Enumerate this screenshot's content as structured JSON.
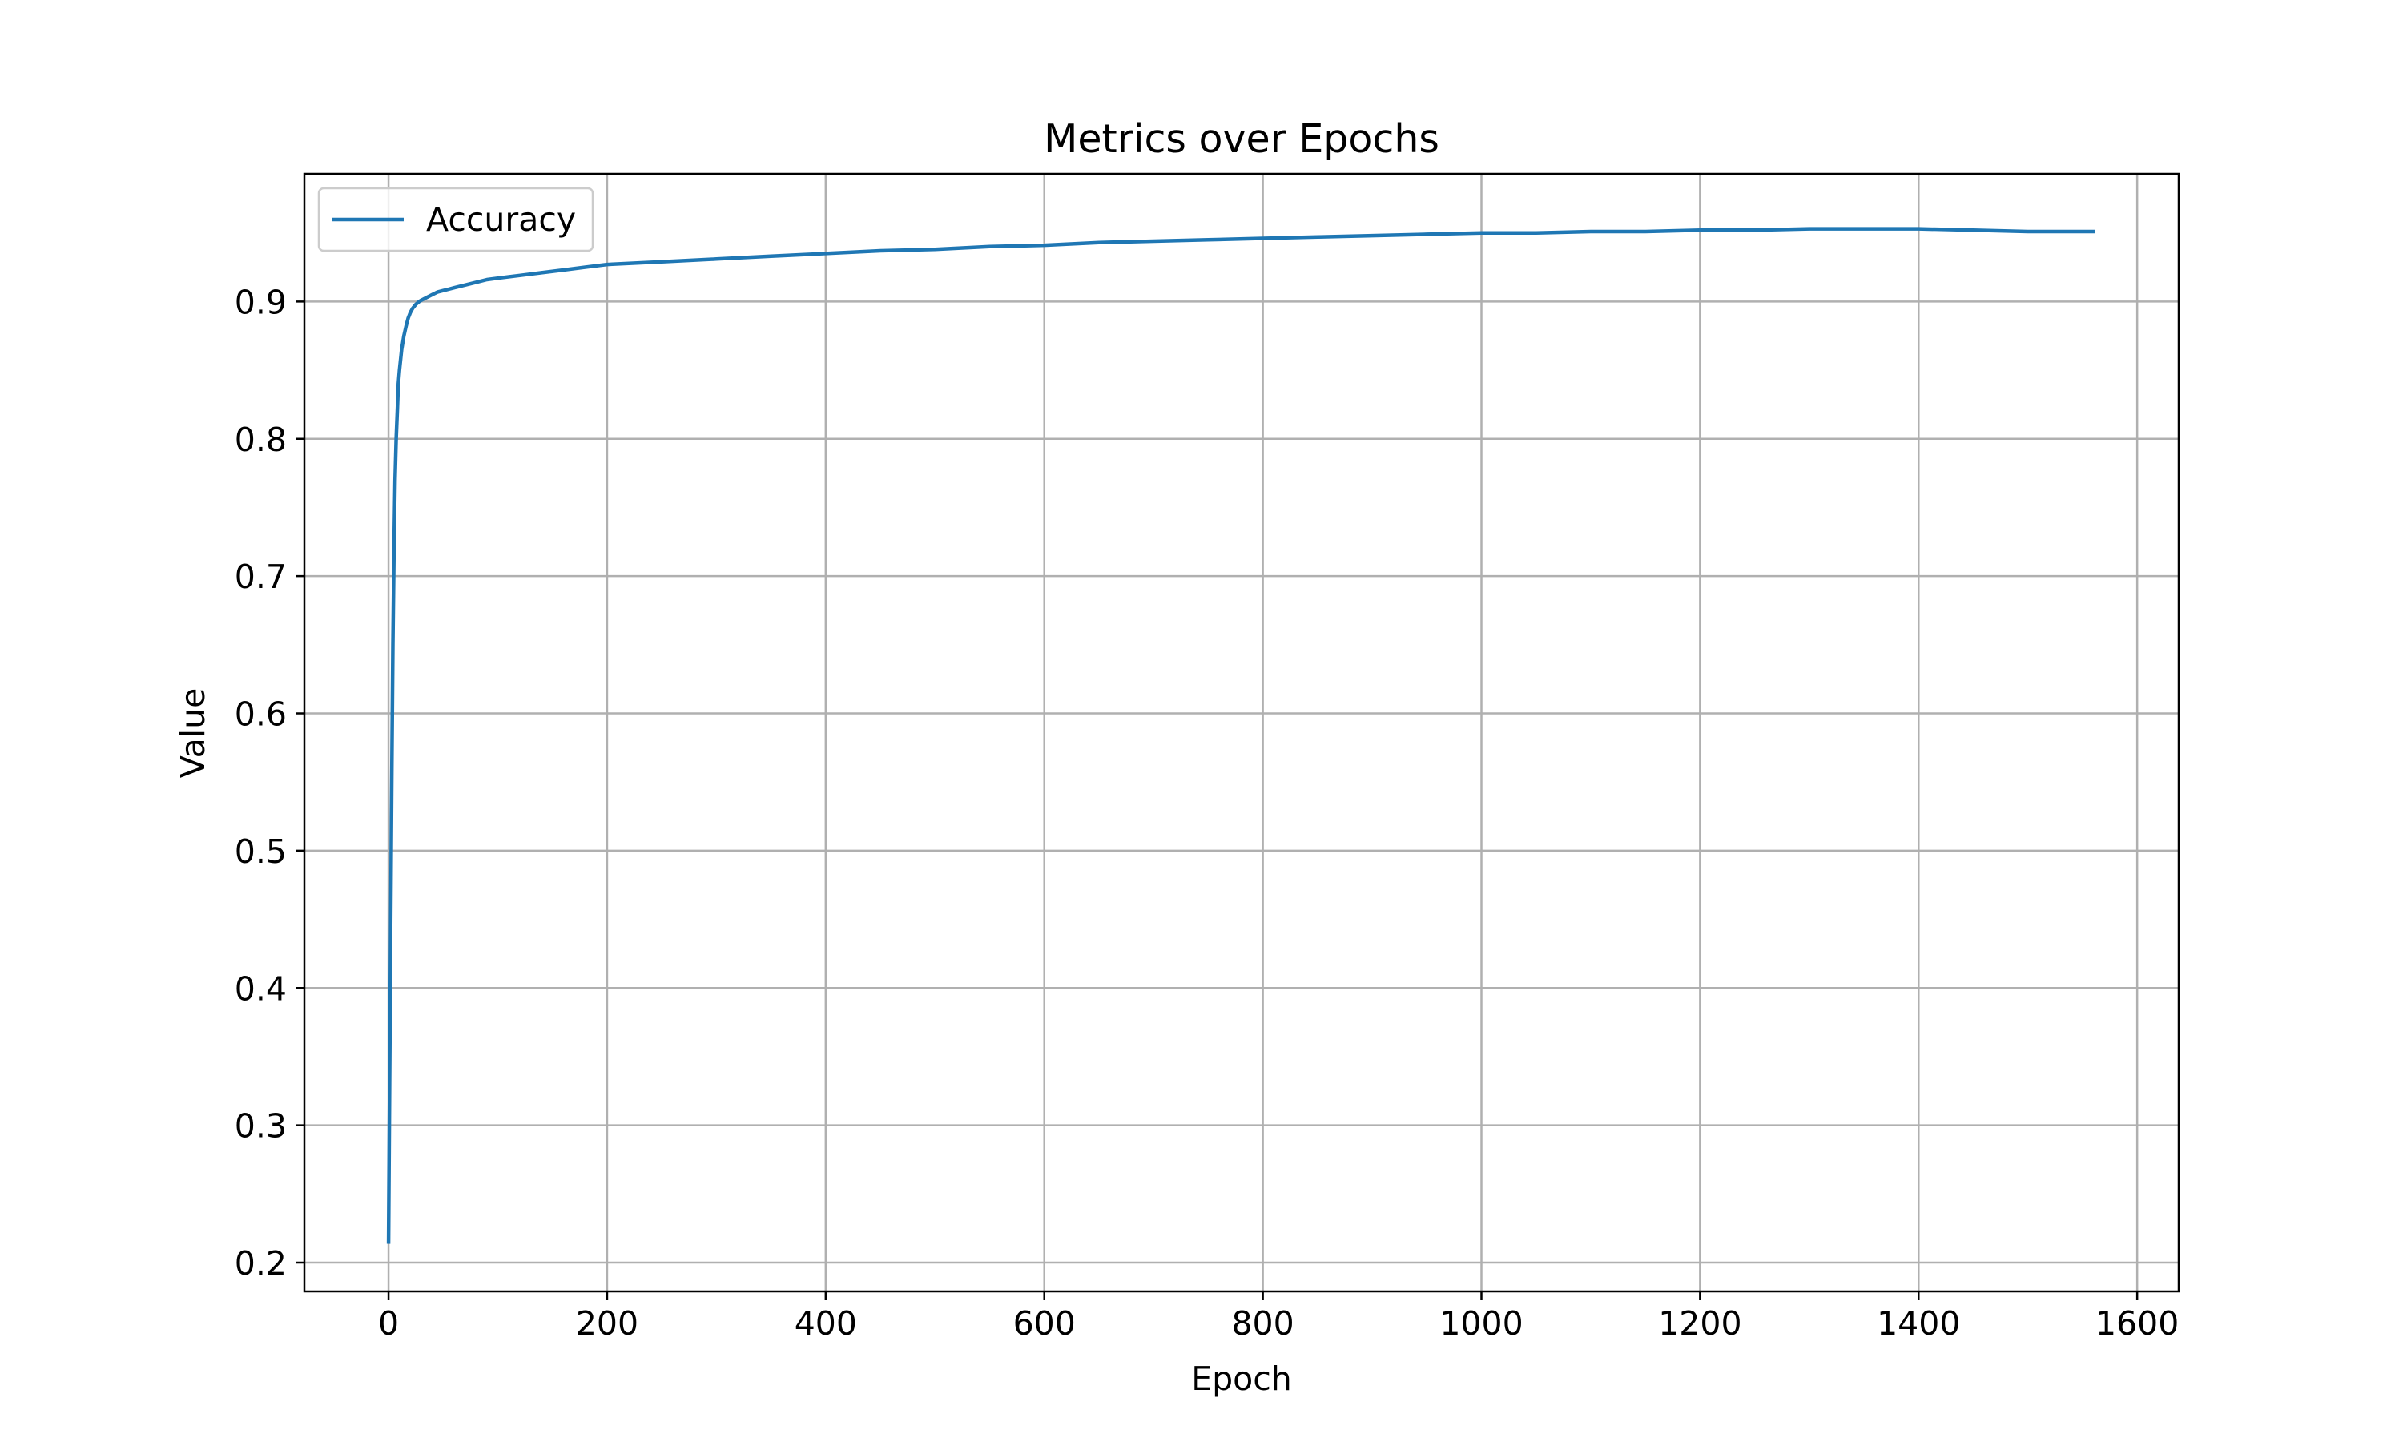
{
  "chart_data": {
    "type": "line",
    "title": "Metrics over Epochs",
    "xlabel": "Epoch",
    "ylabel": "Value",
    "xlim": [
      -77,
      1638
    ],
    "ylim": [
      0.179,
      0.993
    ],
    "xticks": [
      0,
      200,
      400,
      600,
      800,
      1000,
      1200,
      1400,
      1600
    ],
    "xtick_labels": [
      "0",
      "200",
      "400",
      "600",
      "800",
      "1000",
      "1200",
      "1400",
      "1600"
    ],
    "yticks": [
      0.2,
      0.3,
      0.4,
      0.5,
      0.6,
      0.7,
      0.8,
      0.9
    ],
    "ytick_labels": [
      "0.2",
      "0.3",
      "0.4",
      "0.5",
      "0.6",
      "0.7",
      "0.8",
      "0.9"
    ],
    "grid": true,
    "legend": {
      "placement": "upper-left",
      "entries": [
        "Accuracy"
      ]
    },
    "series": [
      {
        "name": "Accuracy",
        "color": "#1f77b4",
        "x": [
          0,
          1,
          2,
          3,
          4,
          5,
          6,
          7,
          8,
          9,
          10,
          12,
          14,
          16,
          18,
          20,
          22,
          25,
          28,
          30,
          35,
          40,
          45,
          50,
          55,
          60,
          70,
          80,
          90,
          100,
          120,
          140,
          160,
          180,
          200,
          250,
          300,
          350,
          400,
          450,
          500,
          550,
          600,
          650,
          700,
          750,
          800,
          850,
          900,
          950,
          1000,
          1050,
          1100,
          1150,
          1200,
          1250,
          1300,
          1350,
          1400,
          1450,
          1500,
          1560
        ],
        "y": [
          0.215,
          0.33,
          0.45,
          0.56,
          0.65,
          0.72,
          0.77,
          0.8,
          0.82,
          0.84,
          0.85,
          0.865,
          0.875,
          0.882,
          0.888,
          0.892,
          0.895,
          0.898,
          0.9,
          0.901,
          0.903,
          0.905,
          0.907,
          0.908,
          0.909,
          0.91,
          0.912,
          0.914,
          0.916,
          0.917,
          0.919,
          0.921,
          0.923,
          0.925,
          0.927,
          0.929,
          0.931,
          0.933,
          0.935,
          0.937,
          0.938,
          0.94,
          0.941,
          0.943,
          0.944,
          0.945,
          0.946,
          0.947,
          0.948,
          0.949,
          0.95,
          0.95,
          0.951,
          0.951,
          0.952,
          0.952,
          0.953,
          0.953,
          0.953,
          0.952,
          0.951,
          0.951
        ]
      }
    ]
  }
}
